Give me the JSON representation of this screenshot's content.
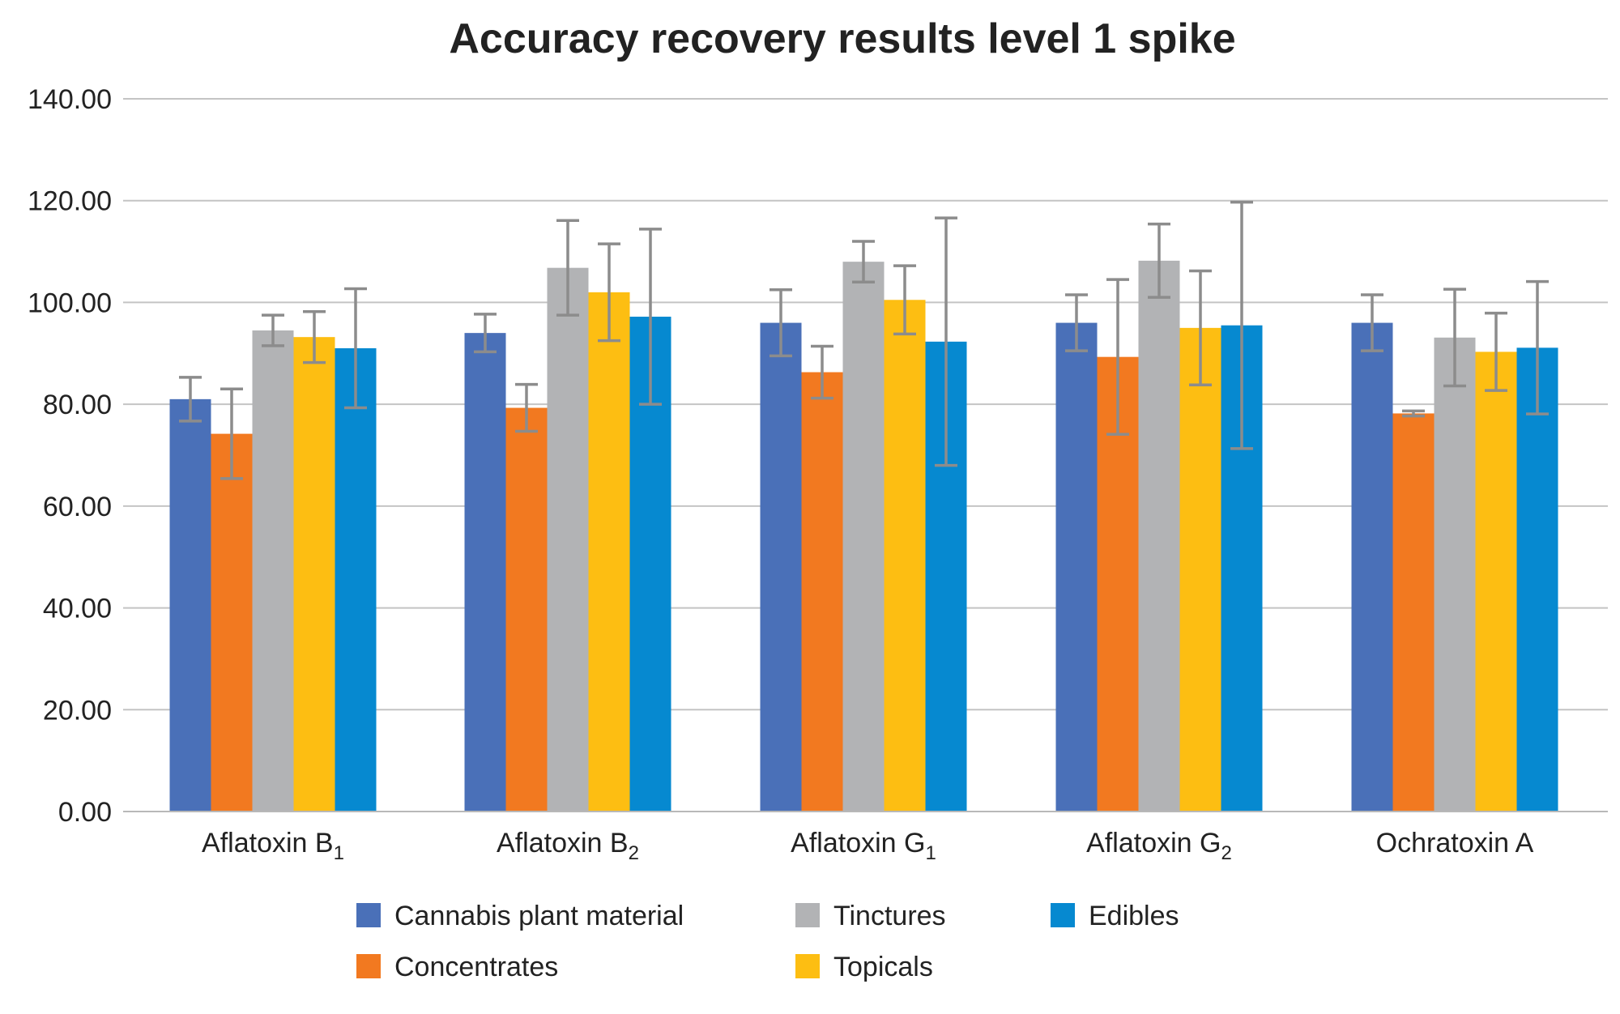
{
  "chart_data": {
    "type": "bar",
    "title": "Accuracy recovery results level 1 spike",
    "xlabel": "",
    "ylabel": "",
    "ylim": [
      0,
      140
    ],
    "yticks": [
      "0.00",
      "20.00",
      "40.00",
      "60.00",
      "80.00",
      "100.00",
      "120.00",
      "140.00"
    ],
    "ytick_values": [
      0,
      20,
      40,
      60,
      80,
      100,
      120,
      140
    ],
    "grid": true,
    "legend_position": "bottom",
    "categories": [
      {
        "base": "Aflatoxin B",
        "sub": "1"
      },
      {
        "base": "Aflatoxin B",
        "sub": "2"
      },
      {
        "base": "Aflatoxin G",
        "sub": "1"
      },
      {
        "base": "Aflatoxin G",
        "sub": "2"
      },
      {
        "base": "Ochratoxin A",
        "sub": ""
      }
    ],
    "series": [
      {
        "name": "Cannabis plant material",
        "color": "#4a70b8",
        "values": [
          81.0,
          94.0,
          96.0,
          96.0,
          96.0
        ],
        "errors": [
          4.3,
          3.7,
          6.5,
          5.5,
          5.5
        ]
      },
      {
        "name": "Concentrates",
        "color": "#f27920",
        "values": [
          74.2,
          79.3,
          86.3,
          89.3,
          78.2
        ],
        "errors": [
          8.8,
          4.6,
          5.1,
          15.2,
          0.5
        ]
      },
      {
        "name": "Tinctures",
        "color": "#b2b3b5",
        "values": [
          94.5,
          106.8,
          108.0,
          108.2,
          93.1
        ],
        "errors": [
          3.0,
          9.3,
          4.0,
          7.2,
          9.5
        ]
      },
      {
        "name": "Topicals",
        "color": "#fdbe12",
        "values": [
          93.2,
          102.0,
          100.5,
          95.0,
          90.3
        ],
        "errors": [
          5.0,
          9.5,
          6.7,
          11.2,
          7.6
        ]
      },
      {
        "name": "Edibles",
        "color": "#0689d0",
        "values": [
          91.0,
          97.2,
          92.3,
          95.5,
          91.1
        ],
        "errors": [
          11.7,
          17.2,
          24.3,
          24.2,
          13.0
        ]
      }
    ]
  }
}
